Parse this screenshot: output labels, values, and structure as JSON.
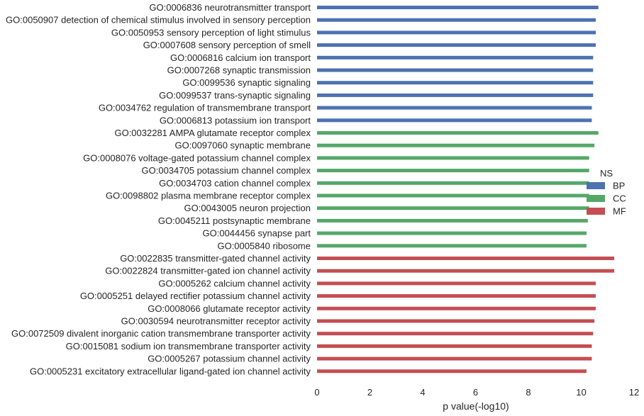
{
  "chart_data": {
    "type": "bar",
    "orientation": "horizontal",
    "xlabel": "p value(-log10)",
    "xlim": [
      0,
      12
    ],
    "xticks": [
      0,
      2,
      4,
      6,
      8,
      10,
      12
    ],
    "grid": false,
    "legend": {
      "title": "NS",
      "placement": "right",
      "entries": [
        {
          "name": "BP",
          "color": "#4c72b0"
        },
        {
          "name": "CC",
          "color": "#55a868"
        },
        {
          "name": "MF",
          "color": "#c44e52"
        }
      ]
    },
    "bars": [
      {
        "label": "GO:0006836 neurotransmitter transport",
        "value": 10.65,
        "group": "BP"
      },
      {
        "label": "GO:0050907 detection of chemical stimulus involved in sensory perception",
        "value": 10.55,
        "group": "BP"
      },
      {
        "label": "GO:0050953 sensory perception of light stimulus",
        "value": 10.55,
        "group": "BP"
      },
      {
        "label": "GO:0007608 sensory perception of smell",
        "value": 10.55,
        "group": "BP"
      },
      {
        "label": "GO:0006816 calcium ion transport",
        "value": 10.45,
        "group": "BP"
      },
      {
        "label": "GO:0007268 synaptic transmission",
        "value": 10.45,
        "group": "BP"
      },
      {
        "label": "GO:0099536 synaptic signaling",
        "value": 10.45,
        "group": "BP"
      },
      {
        "label": "GO:0099537 trans-synaptic signaling",
        "value": 10.45,
        "group": "BP"
      },
      {
        "label": "GO:0034762 regulation of transmembrane transport",
        "value": 10.4,
        "group": "BP"
      },
      {
        "label": "GO:0006813 potassium ion transport",
        "value": 10.4,
        "group": "BP"
      },
      {
        "label": "GO:0032281 AMPA glutamate receptor complex",
        "value": 10.65,
        "group": "CC"
      },
      {
        "label": "GO:0097060 synaptic membrane",
        "value": 10.5,
        "group": "CC"
      },
      {
        "label": "GO:0008076 voltage-gated potassium channel complex",
        "value": 10.3,
        "group": "CC"
      },
      {
        "label": "GO:0034705 potassium channel complex",
        "value": 10.3,
        "group": "CC"
      },
      {
        "label": "GO:0034703 cation channel complex",
        "value": 10.3,
        "group": "CC"
      },
      {
        "label": "GO:0098802 plasma membrane receptor complex",
        "value": 10.3,
        "group": "CC"
      },
      {
        "label": "GO:0043005 neuron projection",
        "value": 10.3,
        "group": "CC"
      },
      {
        "label": "GO:0045211 postsynaptic membrane",
        "value": 10.25,
        "group": "CC"
      },
      {
        "label": "GO:0044456 synapse part",
        "value": 10.2,
        "group": "CC"
      },
      {
        "label": "GO:0005840 ribosome",
        "value": 10.2,
        "group": "CC"
      },
      {
        "label": "GO:0022835 transmitter-gated channel activity",
        "value": 11.25,
        "group": "MF"
      },
      {
        "label": "GO:0022824 transmitter-gated ion channel activity",
        "value": 11.25,
        "group": "MF"
      },
      {
        "label": "GO:0005262 calcium channel activity",
        "value": 10.55,
        "group": "MF"
      },
      {
        "label": "GO:0005251 delayed rectifier potassium channel activity",
        "value": 10.55,
        "group": "MF"
      },
      {
        "label": "GO:0008066 glutamate receptor activity",
        "value": 10.55,
        "group": "MF"
      },
      {
        "label": "GO:0030594 neurotransmitter receptor activity",
        "value": 10.5,
        "group": "MF"
      },
      {
        "label": "GO:0072509 divalent inorganic cation transmembrane transporter activity",
        "value": 10.45,
        "group": "MF"
      },
      {
        "label": "GO:0015081 sodium ion transmembrane transporter activity",
        "value": 10.4,
        "group": "MF"
      },
      {
        "label": "GO:0005267 potassium channel activity",
        "value": 10.4,
        "group": "MF"
      },
      {
        "label": "GO:0005231 excitatory extracellular ligand-gated ion channel activity",
        "value": 10.2,
        "group": "MF"
      }
    ]
  }
}
